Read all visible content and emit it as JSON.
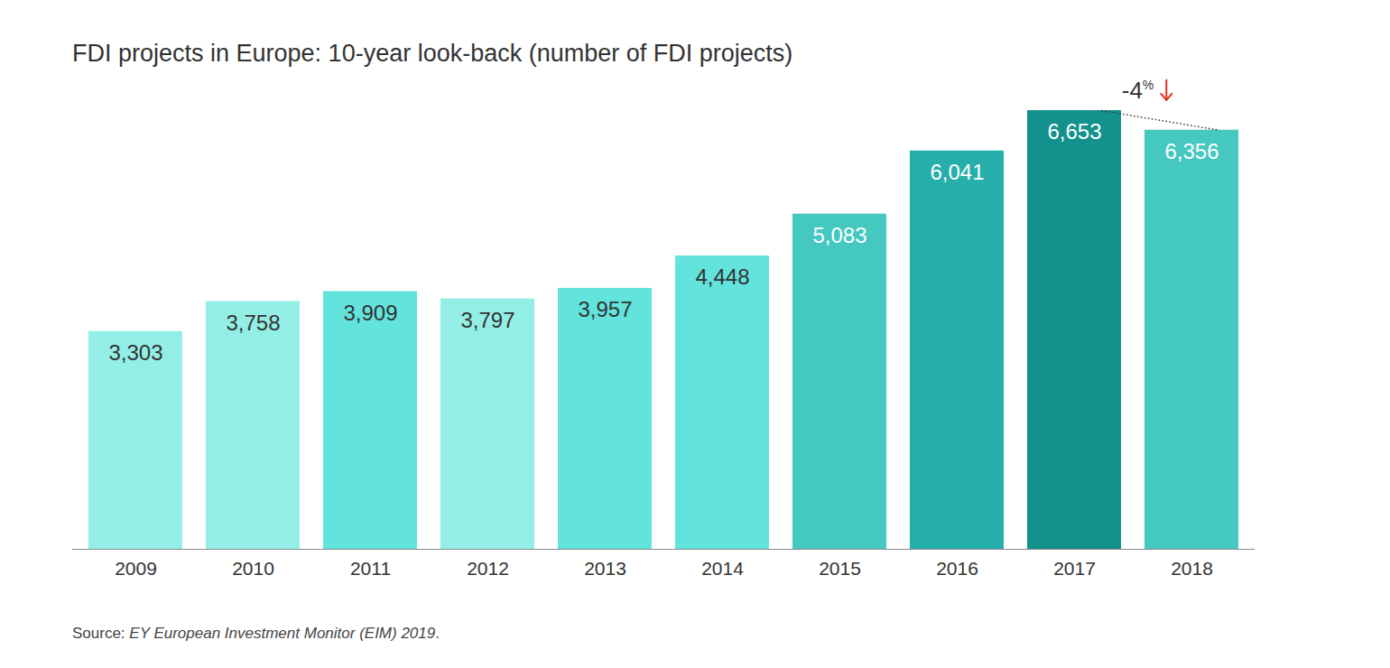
{
  "chart_data": {
    "type": "bar",
    "title": "FDI projects in Europe: 10-year look-back (number of FDI projects)",
    "categories": [
      "2009",
      "2010",
      "2011",
      "2012",
      "2013",
      "2014",
      "2015",
      "2016",
      "2017",
      "2018"
    ],
    "values": [
      3303,
      3758,
      3909,
      3797,
      3957,
      4448,
      5083,
      6041,
      6653,
      6356
    ],
    "value_labels": [
      "3,303",
      "3,758",
      "3,909",
      "3,797",
      "3,957",
      "4,448",
      "5,083",
      "6,041",
      "6,653",
      "6,356"
    ],
    "colors": [
      "#93efe6",
      "#93efe6",
      "#62e3dc",
      "#93efe6",
      "#62e3dc",
      "#62e3dc",
      "#44c8bf",
      "#26aeaa",
      "#13918c",
      "#44c8bf"
    ],
    "ylim": [
      0,
      6653
    ],
    "grid": false,
    "data_labels": true,
    "tick_labels": "x",
    "annotations": [
      {
        "text": "-4%",
        "from": "2017",
        "to": "2018"
      }
    ],
    "caption": [
      "Source: ",
      "EY European Investment Monitor (EIM) 2019",
      "."
    ]
  }
}
